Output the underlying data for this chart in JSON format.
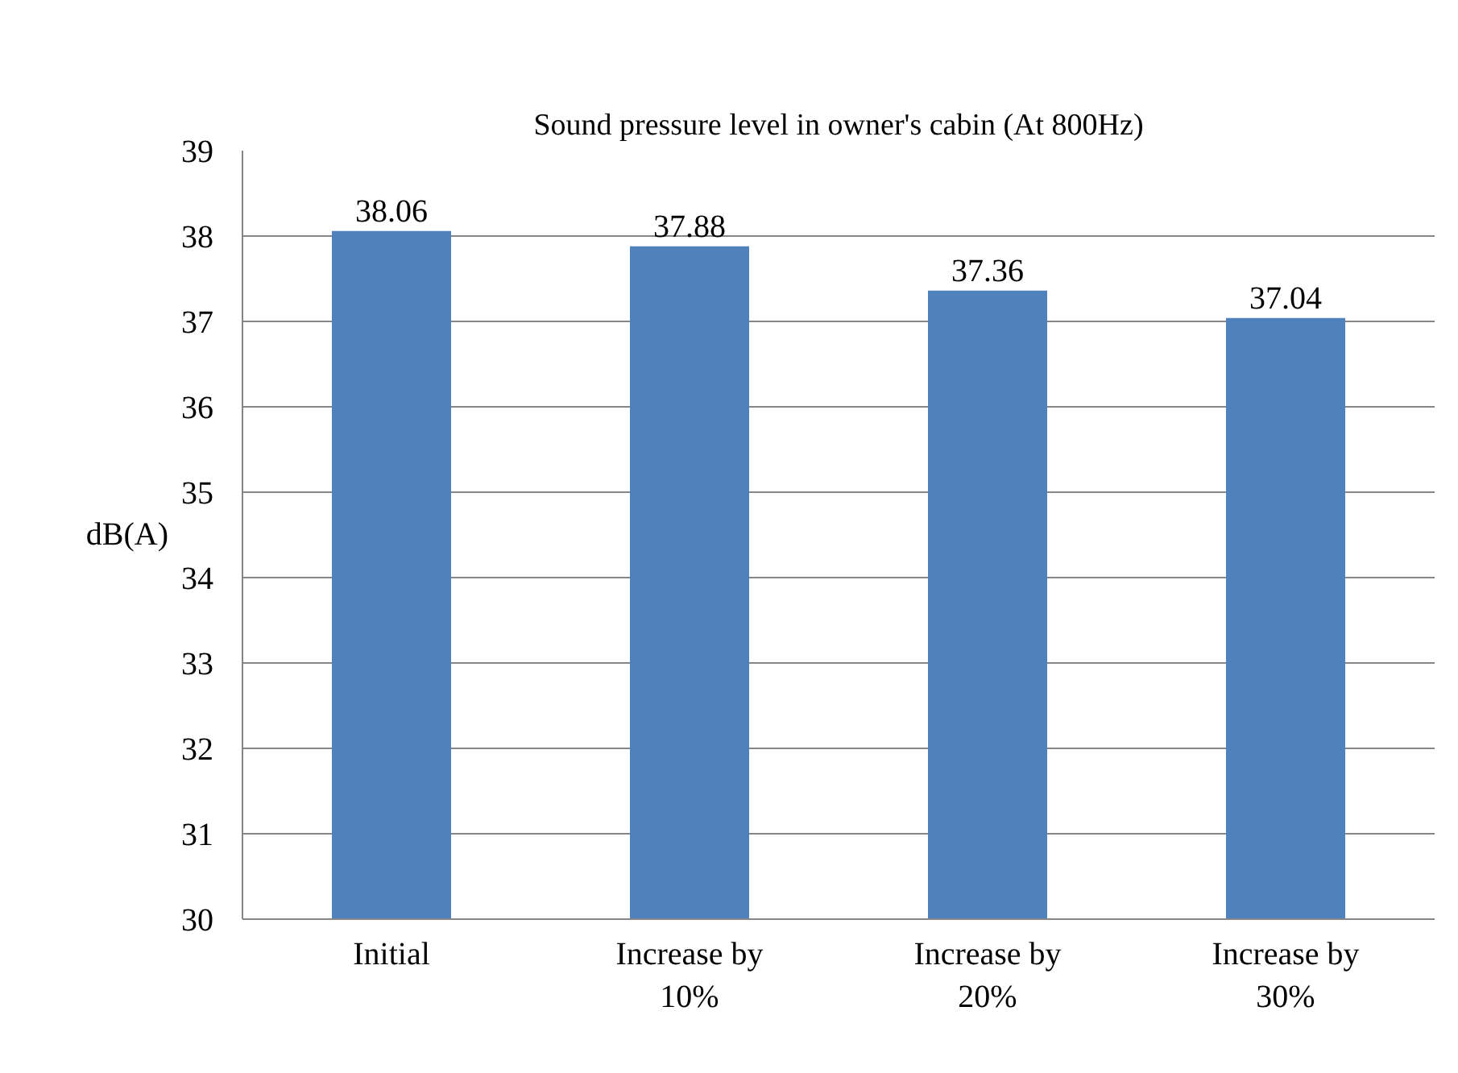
{
  "chart_data": {
    "type": "bar",
    "title": "Sound pressure level in owner's cabin (At 800Hz)",
    "ylabel": "dB(A)",
    "categories": [
      "Initial",
      "Increase by 10%",
      "Increase by 20%",
      "Increase by 30%"
    ],
    "values": [
      38.06,
      37.88,
      37.36,
      37.04
    ],
    "color": "#4f81bd",
    "ylim": [
      30,
      39
    ],
    "yticks": [
      30,
      31,
      32,
      33,
      34,
      35,
      36,
      37,
      38,
      39
    ],
    "grid": "y",
    "data_labels": true
  }
}
